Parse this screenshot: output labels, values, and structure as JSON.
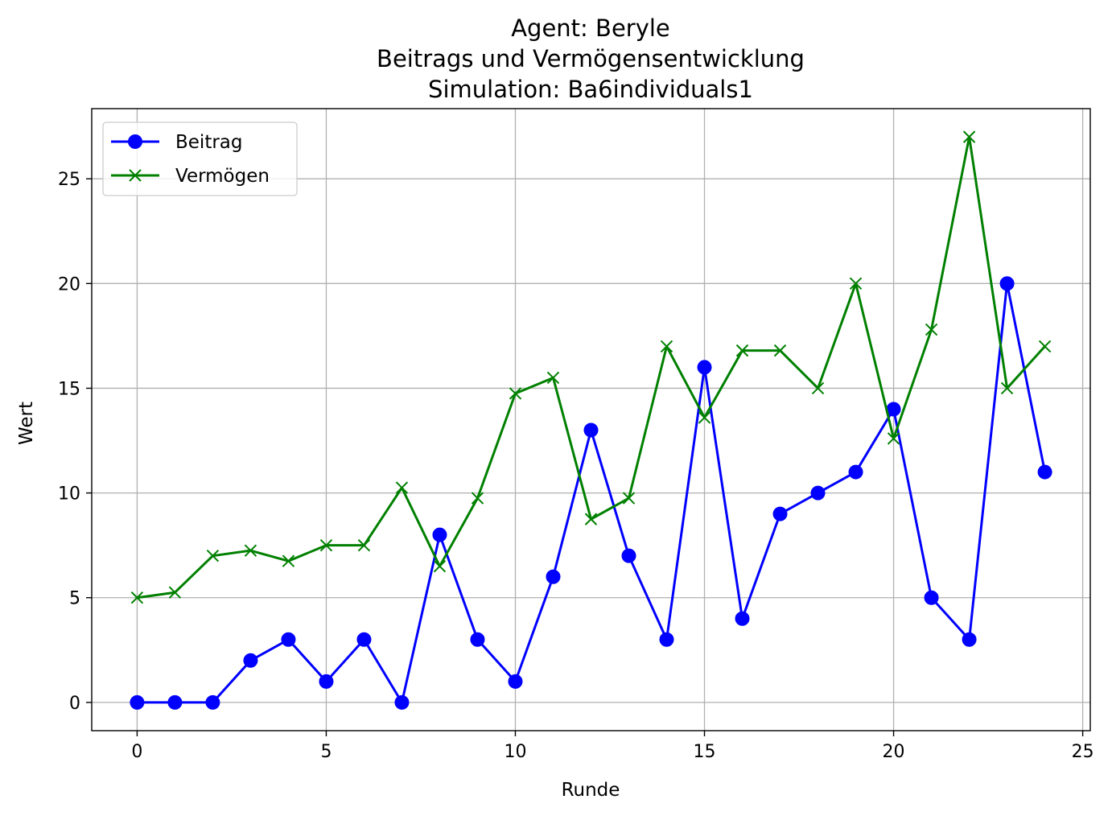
{
  "chart_data": {
    "type": "line",
    "title_lines": [
      "Agent: Beryle",
      "Beitrags und Vermögensentwicklung",
      "Simulation: Ba6individuals1"
    ],
    "xlabel": "Runde",
    "ylabel": "Wert",
    "xlim": [
      -1.2,
      25.2
    ],
    "ylim": [
      -1.35,
      28.35
    ],
    "xticks": [
      0,
      5,
      10,
      15,
      20,
      25
    ],
    "yticks": [
      0,
      5,
      10,
      15,
      20,
      25
    ],
    "grid": true,
    "legend_position": "top-left",
    "x": [
      0,
      1,
      2,
      3,
      4,
      5,
      6,
      7,
      8,
      9,
      10,
      11,
      12,
      13,
      14,
      15,
      16,
      17,
      18,
      19,
      20,
      21,
      22,
      23,
      24
    ],
    "series": [
      {
        "name": "Beitrag",
        "color": "#0000ff",
        "marker": "circle",
        "values": [
          0,
          0,
          0,
          2,
          3,
          1,
          3,
          0,
          8,
          3,
          1,
          6,
          13,
          7,
          3,
          16,
          4,
          9,
          10,
          11,
          14,
          5,
          3,
          20,
          11
        ]
      },
      {
        "name": "Vermögen",
        "color": "#008000",
        "marker": "x",
        "values": [
          5,
          5.25,
          7,
          7.25,
          6.75,
          7.5,
          7.5,
          10.25,
          6.5,
          9.75,
          14.75,
          15.5,
          8.75,
          9.75,
          17,
          13.6,
          16.8,
          16.8,
          15,
          20,
          12.6,
          17.8,
          27,
          15,
          17
        ]
      }
    ]
  }
}
